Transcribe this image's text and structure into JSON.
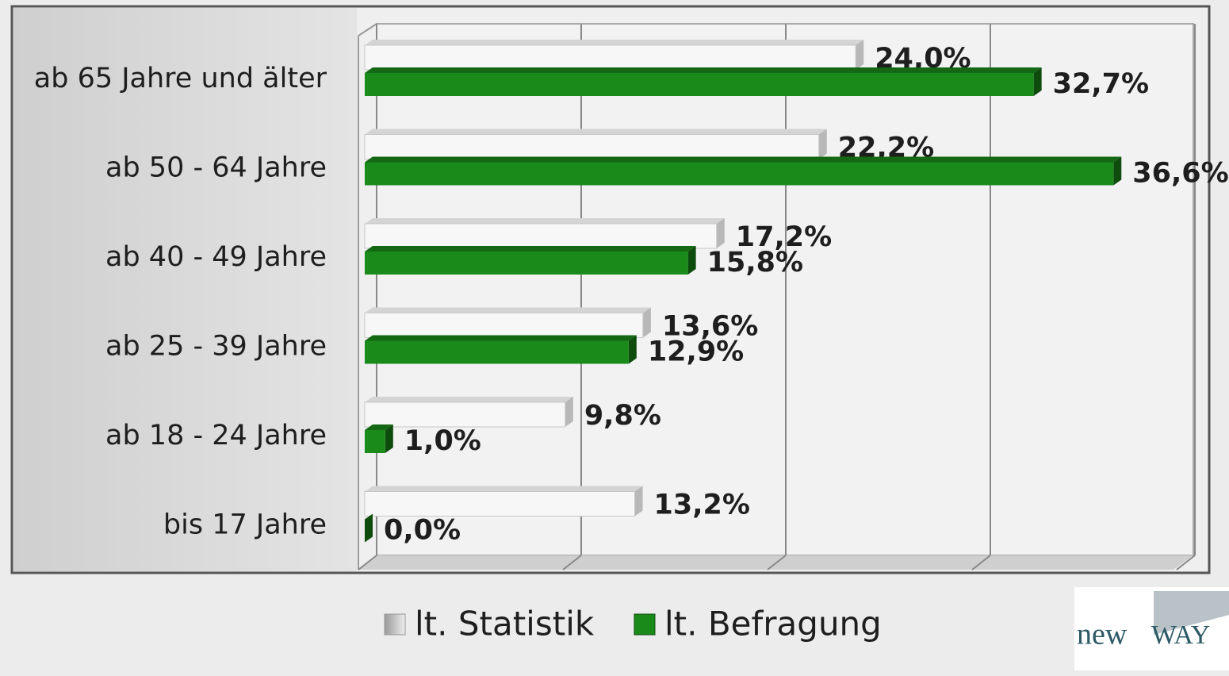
{
  "chart_data": {
    "type": "hbar",
    "categories": [
      "ab 65 Jahre und älter",
      "ab 50 - 64 Jahre",
      "ab 40 - 49 Jahre",
      "ab 25 - 39 Jahre",
      "ab 18 - 24 Jahre",
      "bis 17 Jahre"
    ],
    "series": [
      {
        "name": "lt. Statistik",
        "color": "#f7f7f7",
        "values": [
          24.0,
          22.2,
          17.2,
          13.6,
          9.8,
          13.2
        ],
        "value_labels": [
          "24,0%",
          "22,2%",
          "17,2%",
          "13,6%",
          "9,8%",
          "13,2%"
        ]
      },
      {
        "name": "lt. Befragung",
        "color": "#1a8a1a",
        "values": [
          32.7,
          36.6,
          15.8,
          12.9,
          1.0,
          0.0
        ],
        "value_labels": [
          "32,7%",
          "36,6%",
          "15,8%",
          "12,9%",
          "1,0%",
          "0,0%"
        ]
      }
    ],
    "xlim": [
      0,
      40
    ],
    "xticks": [
      0,
      10,
      20,
      30,
      40
    ],
    "grid": true,
    "legend": "bottom"
  },
  "logo": {
    "part1": "new",
    "part2": "WAY"
  }
}
